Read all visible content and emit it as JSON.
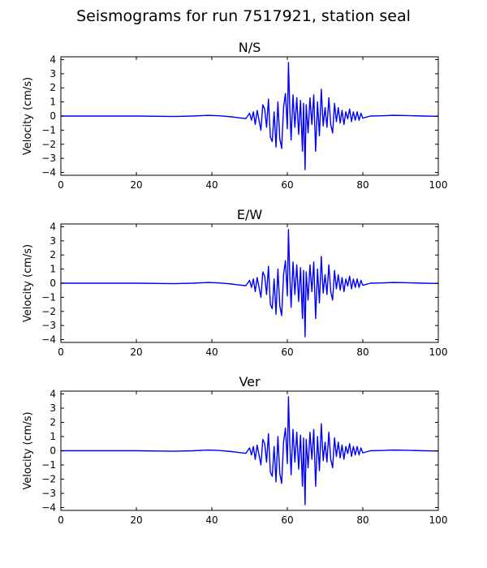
{
  "figure": {
    "title": "Seismograms for run 7517921, station seal"
  },
  "colors": {
    "line": "#0000ff",
    "axes": "#000000",
    "background": "#ffffff"
  },
  "chart_data": [
    {
      "type": "line",
      "title": "N/S",
      "xlabel": "",
      "ylabel": "Velocity (cm/s)",
      "xlim": [
        0,
        100
      ],
      "ylim": [
        -4.2,
        4.2
      ],
      "xticks": [
        0,
        20,
        40,
        60,
        80,
        100
      ],
      "yticks": [
        4,
        3,
        2,
        1,
        0,
        -1,
        -2,
        -3,
        -4
      ],
      "grid": false,
      "series": [
        {
          "x": [
            0,
            10,
            20,
            30,
            35,
            39,
            42,
            45,
            47,
            49,
            50,
            50.5,
            51,
            51.5,
            52,
            52.5,
            53,
            53.5,
            54,
            54.5,
            55,
            55.5,
            56,
            56.5,
            57,
            57.5,
            58,
            58.5,
            59,
            59.5,
            60,
            60.3,
            60.6,
            61,
            61.5,
            62,
            62.5,
            63,
            63.5,
            64,
            64.3,
            64.7,
            65,
            65.5,
            66,
            66.5,
            67,
            67.5,
            68,
            68.5,
            69,
            69.5,
            70,
            70.5,
            71,
            71.5,
            72,
            72.5,
            73,
            73.5,
            74,
            74.5,
            75,
            75.5,
            76,
            76.5,
            77,
            77.5,
            78,
            78.5,
            79,
            79.5,
            80,
            82,
            85,
            88,
            92,
            96,
            100
          ],
          "y": [
            0,
            0,
            0,
            -0.03,
            0,
            0.05,
            0.02,
            -0.05,
            -0.12,
            -0.18,
            0.2,
            -0.3,
            0.3,
            -0.6,
            0.4,
            -0.3,
            -1.0,
            0.8,
            0.5,
            -0.8,
            1.2,
            -1.5,
            -1.8,
            0.3,
            -2.2,
            1.0,
            -1.6,
            -2.3,
            0.6,
            1.6,
            -0.9,
            3.8,
            1.0,
            -1.7,
            1.5,
            -0.8,
            1.3,
            -1.3,
            1.1,
            -2.5,
            0.9,
            -3.8,
            0.8,
            -1.2,
            1.3,
            -0.6,
            1.5,
            -2.5,
            1.0,
            -1.4,
            1.9,
            -0.7,
            0.6,
            -0.8,
            1.3,
            -0.6,
            -1.2,
            0.9,
            -0.4,
            0.6,
            -0.5,
            0.4,
            -0.6,
            0.3,
            -0.2,
            0.5,
            -0.4,
            0.3,
            -0.3,
            0.3,
            -0.3,
            0.2,
            -0.15,
            0,
            0.02,
            0.05,
            0.03,
            0,
            -0.02
          ]
        }
      ]
    },
    {
      "type": "line",
      "title": "E/W",
      "xlabel": "",
      "ylabel": "Velocity (cm/s)",
      "xlim": [
        0,
        100
      ],
      "ylim": [
        -4.2,
        4.2
      ],
      "xticks": [
        0,
        20,
        40,
        60,
        80,
        100
      ],
      "yticks": [
        4,
        3,
        2,
        1,
        0,
        -1,
        -2,
        -3,
        -4
      ],
      "grid": false,
      "series": [
        {
          "x": [
            0,
            10,
            20,
            30,
            35,
            39,
            42,
            45,
            47,
            49,
            50,
            50.5,
            51,
            51.5,
            52,
            52.5,
            53,
            53.5,
            54,
            54.5,
            55,
            55.5,
            56,
            56.5,
            57,
            57.5,
            58,
            58.5,
            59,
            59.5,
            60,
            60.3,
            60.6,
            61,
            61.5,
            62,
            62.5,
            63,
            63.5,
            64,
            64.3,
            64.7,
            65,
            65.5,
            66,
            66.5,
            67,
            67.5,
            68,
            68.5,
            69,
            69.5,
            70,
            70.5,
            71,
            71.5,
            72,
            72.5,
            73,
            73.5,
            74,
            74.5,
            75,
            75.5,
            76,
            76.5,
            77,
            77.5,
            78,
            78.5,
            79,
            79.5,
            80,
            82,
            85,
            88,
            92,
            96,
            100
          ],
          "y": [
            0,
            0,
            0,
            -0.03,
            0,
            0.05,
            0.02,
            -0.05,
            -0.12,
            -0.18,
            0.2,
            -0.3,
            0.3,
            -0.6,
            0.4,
            -0.3,
            -1.0,
            0.8,
            0.5,
            -0.8,
            1.2,
            -1.5,
            -1.8,
            0.3,
            -2.2,
            1.0,
            -1.6,
            -2.3,
            0.6,
            1.6,
            -0.9,
            3.8,
            1.0,
            -1.7,
            1.5,
            -0.8,
            1.3,
            -1.3,
            1.1,
            -2.5,
            0.9,
            -3.8,
            0.8,
            -1.2,
            1.3,
            -0.6,
            1.5,
            -2.5,
            1.0,
            -1.4,
            1.9,
            -0.7,
            0.6,
            -0.8,
            1.3,
            -0.6,
            -1.2,
            0.9,
            -0.4,
            0.6,
            -0.5,
            0.4,
            -0.6,
            0.3,
            -0.2,
            0.5,
            -0.4,
            0.3,
            -0.3,
            0.3,
            -0.3,
            0.2,
            -0.15,
            0,
            0.02,
            0.05,
            0.03,
            0,
            -0.02
          ]
        }
      ]
    },
    {
      "type": "line",
      "title": "Ver",
      "xlabel": "",
      "ylabel": "Velocity (cm/s)",
      "xlim": [
        0,
        100
      ],
      "ylim": [
        -4.2,
        4.2
      ],
      "xticks": [
        0,
        20,
        40,
        60,
        80,
        100
      ],
      "yticks": [
        4,
        3,
        2,
        1,
        0,
        -1,
        -2,
        -3,
        -4
      ],
      "grid": false,
      "series": [
        {
          "x": [
            0,
            10,
            20,
            30,
            35,
            39,
            42,
            45,
            47,
            49,
            50,
            50.5,
            51,
            51.5,
            52,
            52.5,
            53,
            53.5,
            54,
            54.5,
            55,
            55.5,
            56,
            56.5,
            57,
            57.5,
            58,
            58.5,
            59,
            59.5,
            60,
            60.3,
            60.6,
            61,
            61.5,
            62,
            62.5,
            63,
            63.5,
            64,
            64.3,
            64.7,
            65,
            65.5,
            66,
            66.5,
            67,
            67.5,
            68,
            68.5,
            69,
            69.5,
            70,
            70.5,
            71,
            71.5,
            72,
            72.5,
            73,
            73.5,
            74,
            74.5,
            75,
            75.5,
            76,
            76.5,
            77,
            77.5,
            78,
            78.5,
            79,
            79.5,
            80,
            82,
            85,
            88,
            92,
            96,
            100
          ],
          "y": [
            0,
            0,
            0,
            -0.03,
            0,
            0.05,
            0.02,
            -0.05,
            -0.12,
            -0.18,
            0.2,
            -0.3,
            0.3,
            -0.6,
            0.4,
            -0.3,
            -1.0,
            0.8,
            0.5,
            -0.8,
            1.2,
            -1.5,
            -1.8,
            0.3,
            -2.2,
            1.0,
            -1.6,
            -2.3,
            0.6,
            1.6,
            -0.9,
            3.8,
            1.0,
            -1.7,
            1.5,
            -0.8,
            1.3,
            -1.3,
            1.1,
            -2.5,
            0.9,
            -3.8,
            0.8,
            -1.2,
            1.3,
            -0.6,
            1.5,
            -2.5,
            1.0,
            -1.4,
            1.9,
            -0.7,
            0.6,
            -0.8,
            1.3,
            -0.6,
            -1.2,
            0.9,
            -0.4,
            0.6,
            -0.5,
            0.4,
            -0.6,
            0.3,
            -0.2,
            0.5,
            -0.4,
            0.3,
            -0.3,
            0.3,
            -0.3,
            0.2,
            -0.15,
            0,
            0.02,
            0.05,
            0.03,
            0,
            -0.02
          ]
        }
      ]
    }
  ]
}
